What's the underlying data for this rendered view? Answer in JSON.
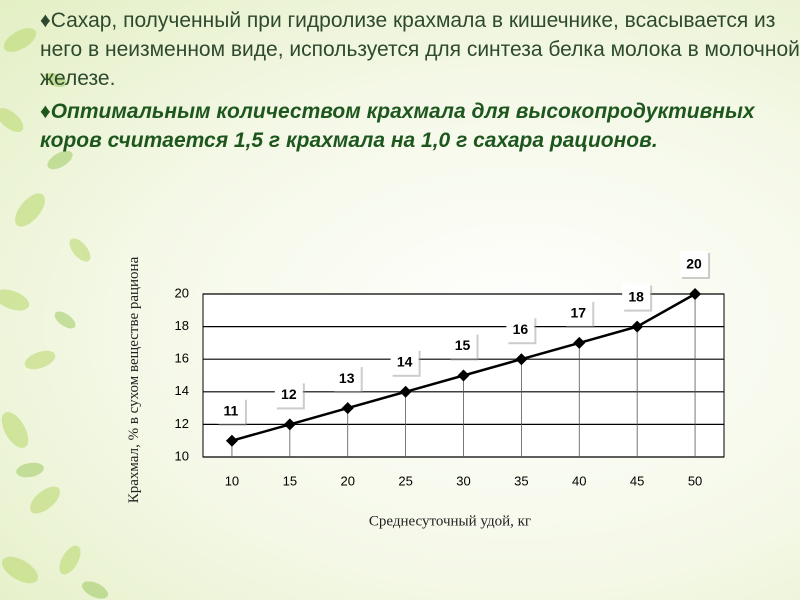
{
  "paragraphs": [
    {
      "bullet": "♦",
      "text": "Сахар,  полученный при гидролизе крахмала в кишечнике, всасывается из него в неизменном виде, используется для синтеза белка молока в молочной железе."
    },
    {
      "bullet": "♦",
      "text": "Оптимальным количеством крахмала для высокопродуктивных коров считается 1,5 г крахмала на 1,0 г сахара рационов."
    }
  ],
  "chart_data": {
    "type": "line",
    "x_label": "Среднесуточный удой, кг",
    "y_label": "Крахмал, % в сухом веществе рациона",
    "categories": [
      "10",
      "15",
      "20",
      "25",
      "30",
      "35",
      "40",
      "45",
      "50"
    ],
    "values": [
      11,
      12,
      13,
      14,
      15,
      16,
      17,
      18,
      20
    ],
    "color": "#000000",
    "ylim": [
      10,
      20
    ],
    "yticks": [
      10,
      12,
      14,
      16,
      18,
      20
    ],
    "grid": true
  }
}
